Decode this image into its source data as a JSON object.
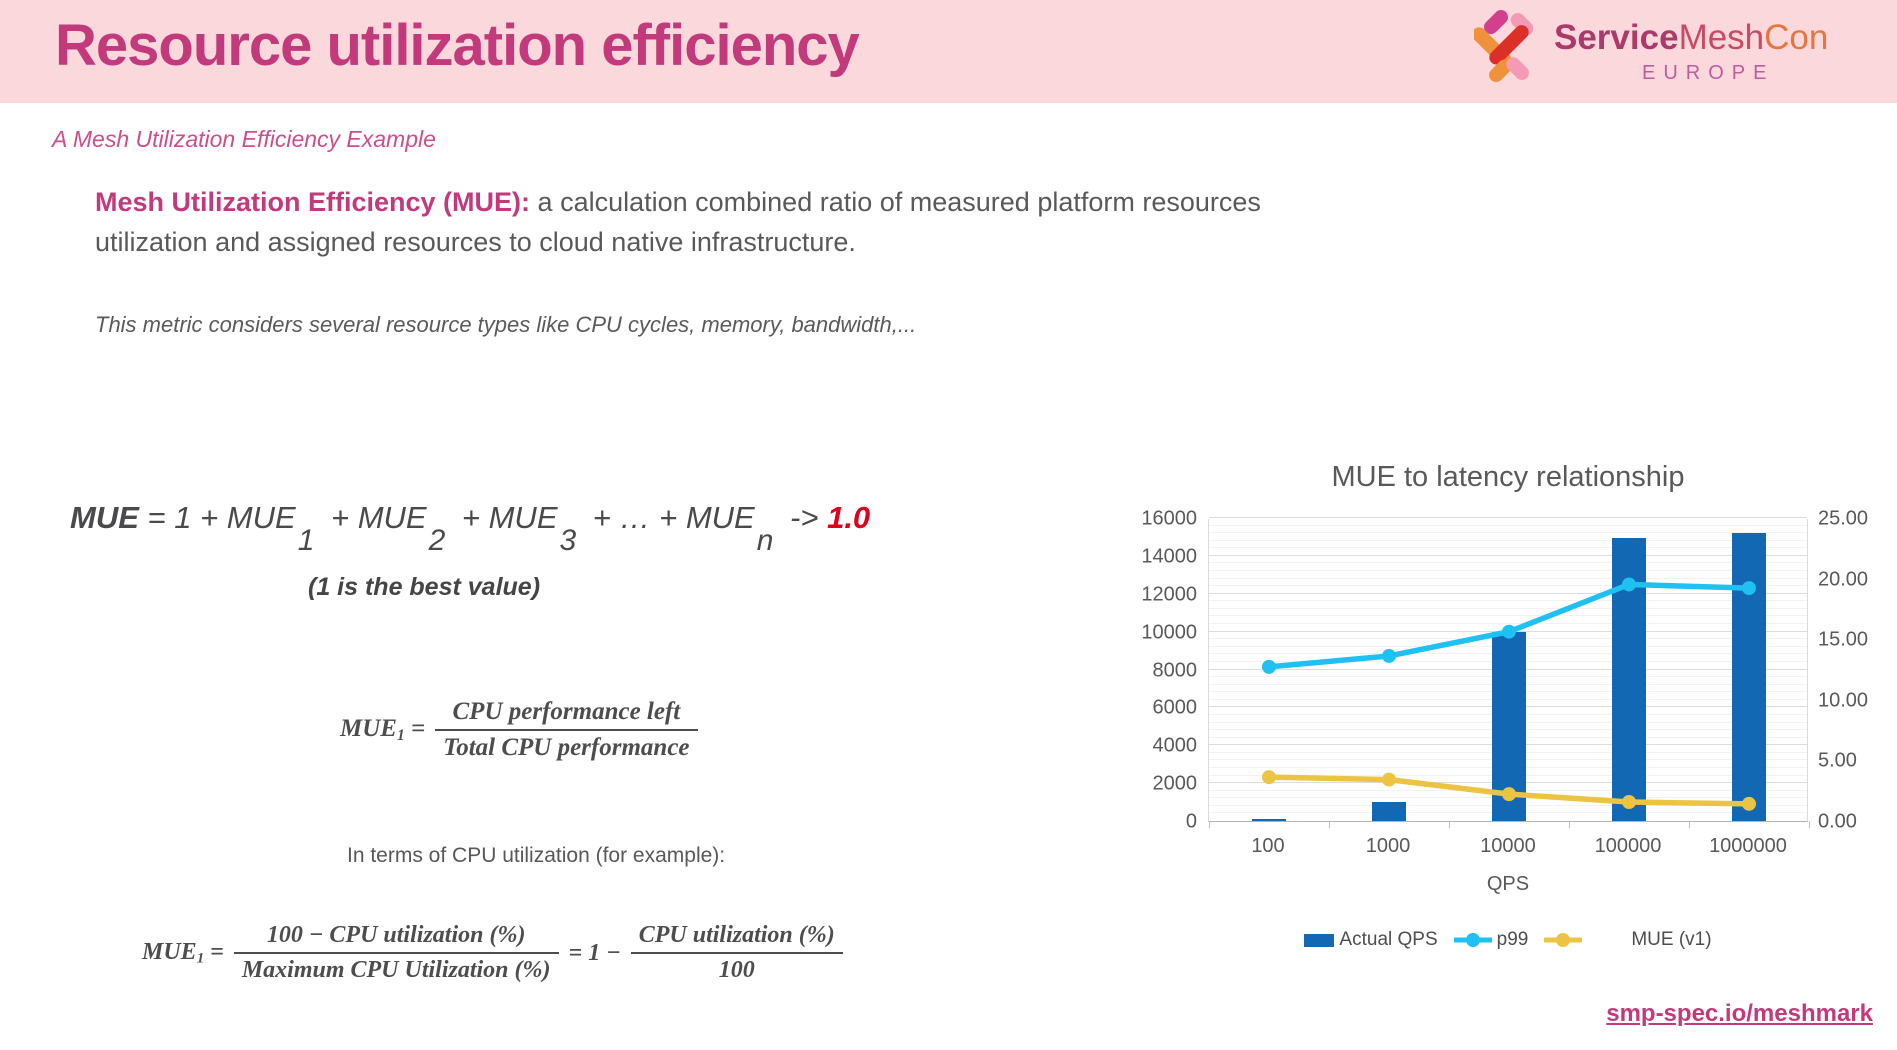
{
  "header": {
    "title": "Resource utilization efficiency",
    "logo": {
      "service": "Service",
      "mesh": "Mesh",
      "con": "Con",
      "region": "EUROPE"
    }
  },
  "subtitle": "A Mesh Utilization Efficiency Example",
  "definition": {
    "lead": "Mesh Utilization Efficiency (MUE):",
    "rest": " a calculation combined ratio of measured platform resources utilization and assigned resources to cloud native infrastructure."
  },
  "metric_note": "This metric considers several resource types like CPU cycles, memory, bandwidth,...",
  "formula_sum": {
    "parts": [
      "MUE",
      " = 1 + MUE",
      "1",
      " + MUE",
      "2",
      " + MUE",
      "3",
      " + … + MUE",
      "n",
      " -> ",
      "1.0"
    ],
    "caption": "(1 is the best value)"
  },
  "formula_cpu": {
    "lhs": "MUE",
    "sub": "1",
    "eq": "=",
    "num": "CPU performance left",
    "den": "Total CPU performance"
  },
  "util_note": "In terms of CPU utilization (for example):",
  "formula_util": {
    "lhs": "MUE",
    "sub": "1",
    "eq": "=",
    "num1": "100 − CPU utilization (%)",
    "den1": "Maximum CPU Utilization (%)",
    "mid": "= 1 −",
    "num2": "CPU utilization (%)",
    "den2": "100"
  },
  "chart_data": {
    "type": "combo",
    "title": "MUE to latency relationship",
    "categories": [
      "100",
      "1000",
      "10000",
      "100000",
      "1000000"
    ],
    "xlabel": "QPS",
    "left_axis": {
      "min": 0,
      "max": 16000,
      "ticks": [
        "16000",
        "14000",
        "12000",
        "10000",
        "8000",
        "6000",
        "4000",
        "2000",
        "0"
      ]
    },
    "right_axis": {
      "min": 0,
      "max": 25,
      "ticks": [
        "25.00",
        "20.00",
        "15.00",
        "10.00",
        "5.00",
        "0.00"
      ]
    },
    "grid": {
      "major": 2000,
      "minor": 400
    },
    "legend_position": "bottom",
    "series": [
      {
        "name": "Actual QPS",
        "type": "bar",
        "axis": "left",
        "color": "#1268b3",
        "values": [
          100,
          1000,
          10000,
          14950,
          15200
        ]
      },
      {
        "name": "p99",
        "type": "line",
        "axis": "right",
        "color": "#1ec1f1",
        "values": [
          12.8,
          13.7,
          15.7,
          19.6,
          19.3
        ]
      },
      {
        "name": "MUE (v1)",
        "type": "line",
        "axis": "right",
        "color": "#ecc443",
        "values": [
          3.7,
          3.5,
          2.3,
          1.65,
          1.5
        ]
      }
    ]
  },
  "footer": {
    "link": "smp-spec.io/meshmark"
  },
  "colors": {
    "header_bg": "#fbd8dc",
    "accent_pink": "#c23a7c",
    "formula_red": "#e0001b",
    "bar_blue": "#1268b3",
    "line_cyan": "#1ec1f1",
    "line_yellow": "#ecc443",
    "text_gray": "#59595b"
  }
}
